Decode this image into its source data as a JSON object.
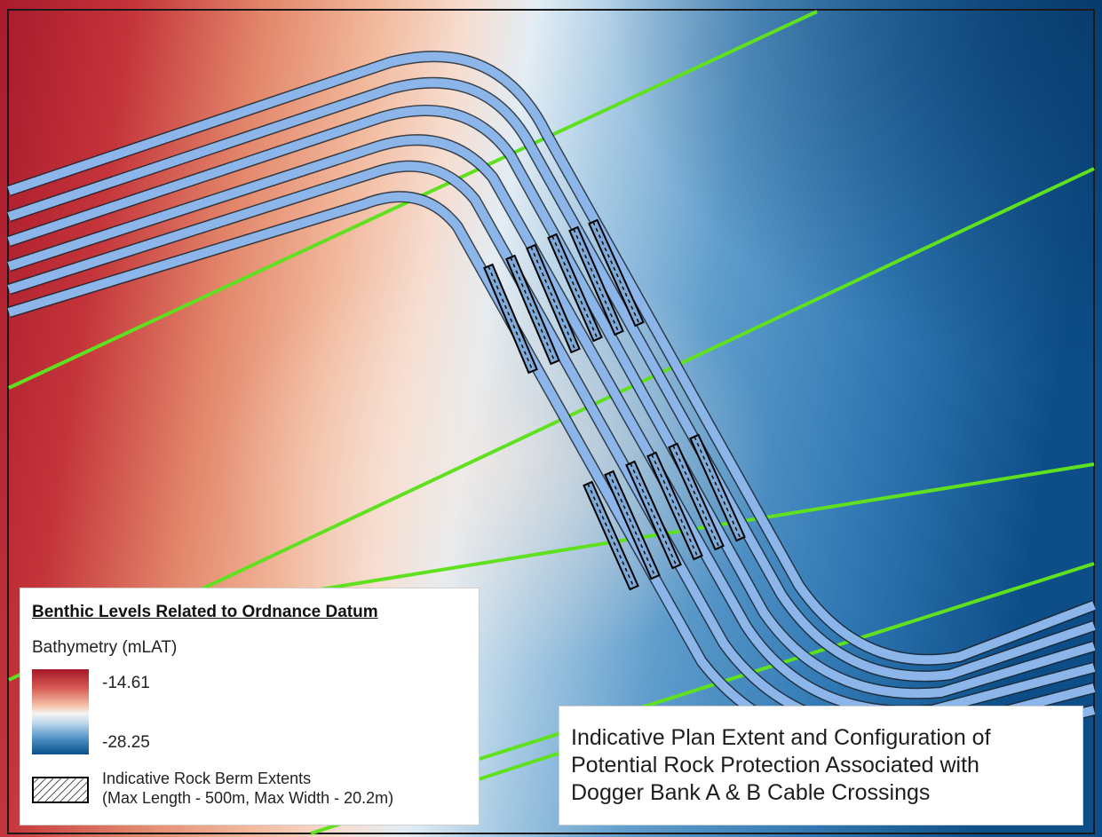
{
  "map": {
    "colors": {
      "shallow": "#a6182a",
      "mid": "#f7f4f1",
      "deep": "#0a4f8c",
      "existing_cable": "#5fe11f",
      "corridor_fill": "#8cb6ea",
      "corridor_outline": "#1b2733",
      "berm_fill": "#7fa9d6",
      "berm_outline": "#000000"
    },
    "layers": [
      {
        "name": "bathymetry-raster"
      },
      {
        "name": "existing-cable-lines",
        "count": 5
      },
      {
        "name": "cable-corridors",
        "count": 6
      },
      {
        "name": "rock-berms",
        "count": 12
      }
    ]
  },
  "legend": {
    "heading": "Benthic Levels Related to Ordnance Datum",
    "bathymetry_label": "Bathymetry (mLAT)",
    "max_value": "-14.61",
    "min_value": "-28.25",
    "berm_line1": "Indicative Rock Berm Extents",
    "berm_line2": "(Max Length - 500m, Max Width - 20.2m)"
  },
  "title_box": {
    "line1": "Indicative Plan Extent and Configuration of",
    "line2": "Potential Rock Protection Associated with",
    "line3": "Dogger Bank A & B Cable Crossings"
  }
}
